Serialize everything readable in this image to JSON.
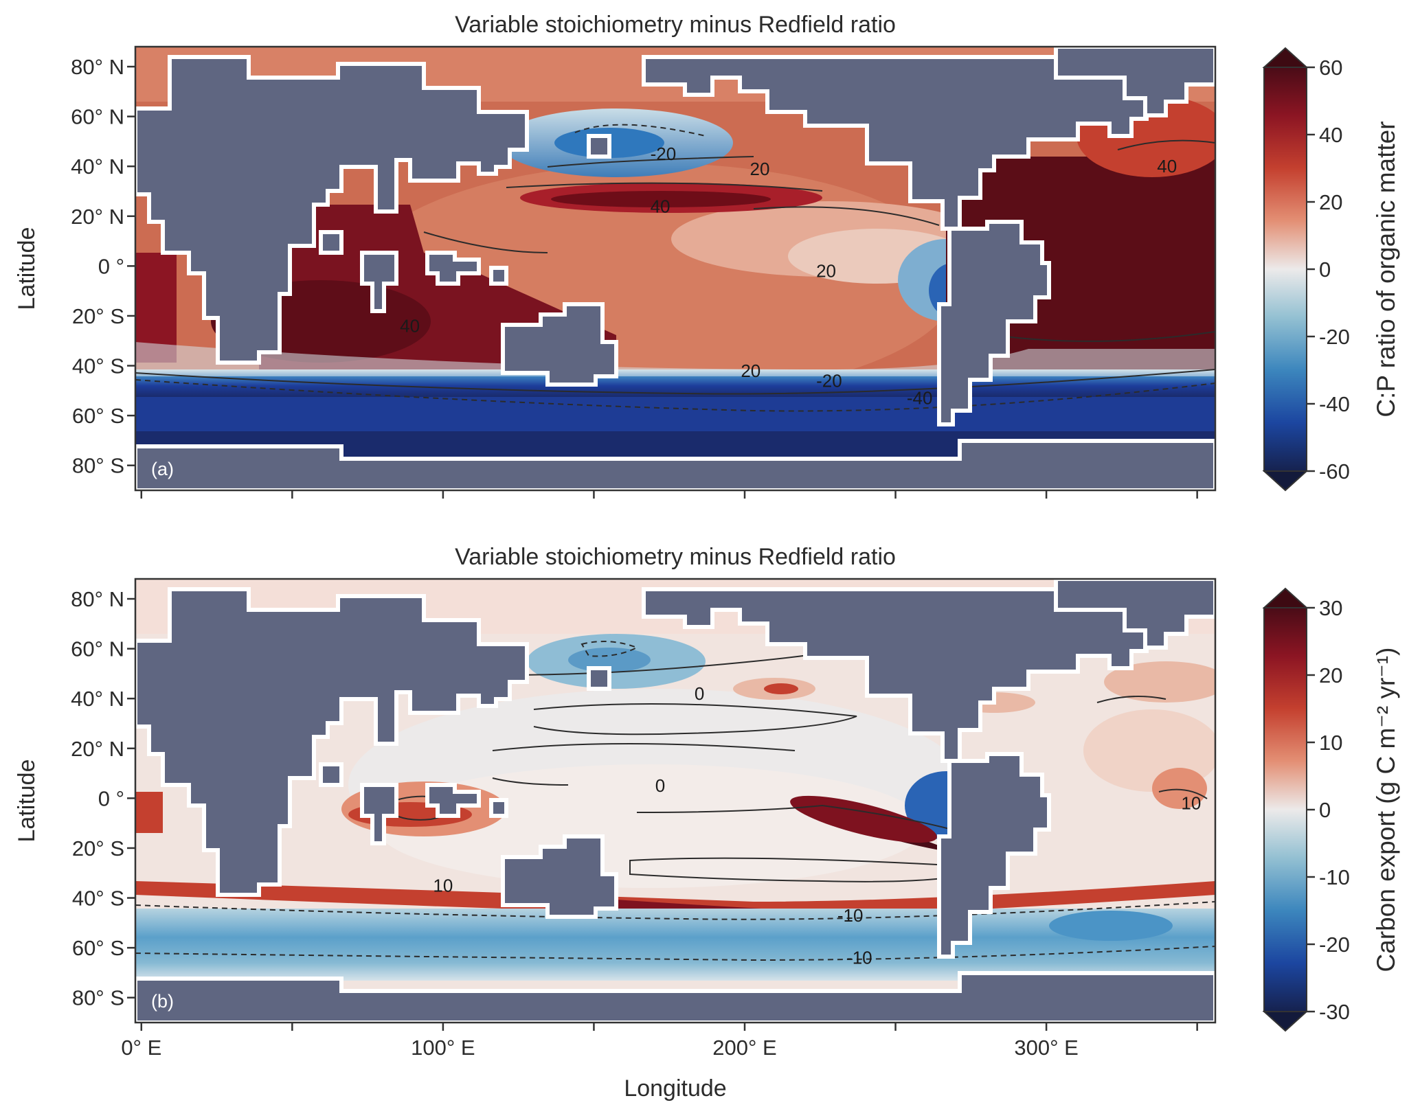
{
  "chart_data": [
    {
      "type": "heatmap",
      "panel_label": "(a)",
      "title": "Variable stoichiometry minus Redfield ratio",
      "xlabel": "",
      "ylabel": "Latitude",
      "xlim": [
        -2,
        356
      ],
      "ylim": [
        -90,
        88
      ],
      "yticks": [
        80,
        60,
        40,
        20,
        0,
        -20,
        -40,
        -60,
        -80
      ],
      "ytick_labels": [
        "80° N",
        "60° N",
        "40° N",
        "20° N",
        "0 °",
        "20° S",
        "40° S",
        "60° S",
        "80° S"
      ],
      "xticks": [
        0,
        50,
        100,
        150,
        200,
        250,
        300,
        350
      ],
      "colorbar": {
        "label": "C:P ratio of organic matter",
        "range": [
          -60,
          60
        ],
        "ticks": [
          60,
          40,
          20,
          0,
          -20,
          -40,
          -60
        ],
        "tick_labels": [
          "60",
          "40",
          "20",
          "0",
          "-20",
          "-40",
          "-60"
        ],
        "extend": "both"
      },
      "contour_labels": [
        {
          "text": "-20",
          "lon": 173,
          "lat": 45
        },
        {
          "text": "20",
          "lon": 205,
          "lat": 39
        },
        {
          "text": "40",
          "lon": 172,
          "lat": 24
        },
        {
          "text": "20",
          "lon": 227,
          "lat": -2
        },
        {
          "text": "40",
          "lon": 89,
          "lat": -24
        },
        {
          "text": "20",
          "lon": 202,
          "lat": -42
        },
        {
          "text": "-20",
          "lon": 228,
          "lat": -46
        },
        {
          "text": "-40",
          "lon": 258,
          "lat": -53
        },
        {
          "text": "40",
          "lon": 340,
          "lat": 40
        }
      ],
      "colors": {
        "land": "#5f6681",
        "coast": "#ffffff"
      }
    },
    {
      "type": "heatmap",
      "panel_label": "(b)",
      "title": "Variable stoichiometry minus Redfield ratio",
      "xlabel": "Longitude",
      "ylabel": "Latitude",
      "xlim": [
        -2,
        356
      ],
      "ylim": [
        -90,
        88
      ],
      "yticks": [
        80,
        60,
        40,
        20,
        0,
        -20,
        -40,
        -60,
        -80
      ],
      "ytick_labels": [
        "80° N",
        "60° N",
        "40° N",
        "20° N",
        "0 °",
        "20° S",
        "40° S",
        "60° S",
        "80° S"
      ],
      "xticks": [
        0,
        50,
        100,
        150,
        200,
        250,
        300,
        350
      ],
      "xtick_labels": [
        "0° E",
        "",
        "100° E",
        "",
        "200° E",
        "",
        "300° E",
        ""
      ],
      "colorbar": {
        "label": "Carbon export (g C m⁻² yr⁻¹)",
        "range": [
          -30,
          30
        ],
        "ticks": [
          30,
          20,
          10,
          0,
          -10,
          -20,
          -30
        ],
        "tick_labels": [
          "30",
          "20",
          "10",
          "0",
          "-10",
          "-20",
          "-30"
        ],
        "extend": "both"
      },
      "contour_labels": [
        {
          "text": "0",
          "lon": 185,
          "lat": 42
        },
        {
          "text": "0",
          "lon": 172,
          "lat": 5
        },
        {
          "text": "10",
          "lon": 100,
          "lat": -35
        },
        {
          "text": "10",
          "lon": 348,
          "lat": -2
        },
        {
          "text": "-10",
          "lon": 235,
          "lat": -47
        },
        {
          "text": "-10",
          "lon": 238,
          "lat": -64
        }
      ],
      "colors": {
        "land": "#5f6681",
        "coast": "#ffffff"
      }
    }
  ]
}
